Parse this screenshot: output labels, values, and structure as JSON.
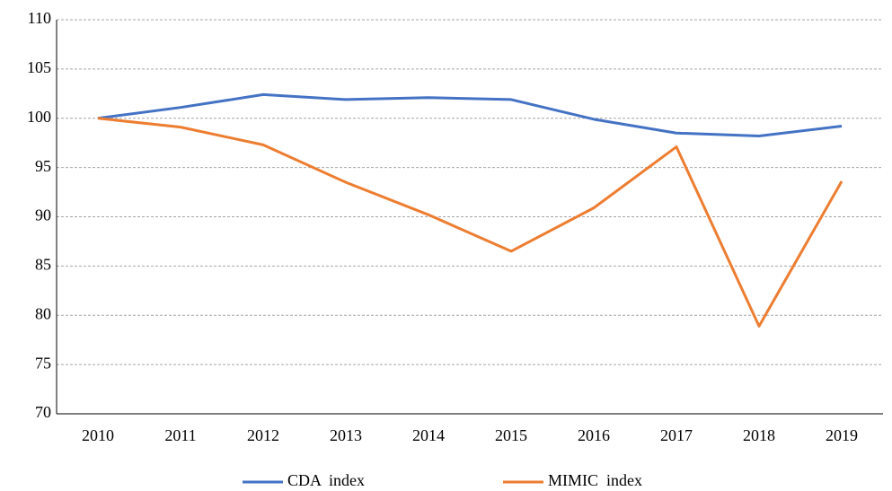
{
  "chart_data": {
    "type": "line",
    "categories": [
      "2010",
      "2011",
      "2012",
      "2013",
      "2014",
      "2015",
      "2016",
      "2017",
      "2018",
      "2019"
    ],
    "series": [
      {
        "name": "CDA  index",
        "color": "#4472c4",
        "values": [
          100,
          101.1,
          102.4,
          101.9,
          102.1,
          101.9,
          99.9,
          98.5,
          98.2,
          99.2
        ]
      },
      {
        "name": "MIMIC  index",
        "color": "#ed7d31",
        "values": [
          100,
          99.1,
          97.3,
          93.5,
          90.2,
          86.5,
          90.9,
          97.1,
          78.9,
          93.6
        ]
      }
    ],
    "ylim": [
      70,
      110
    ],
    "yticks": [
      70,
      75,
      80,
      85,
      90,
      95,
      100,
      105,
      110
    ],
    "grid": true,
    "legend": "bottom"
  }
}
